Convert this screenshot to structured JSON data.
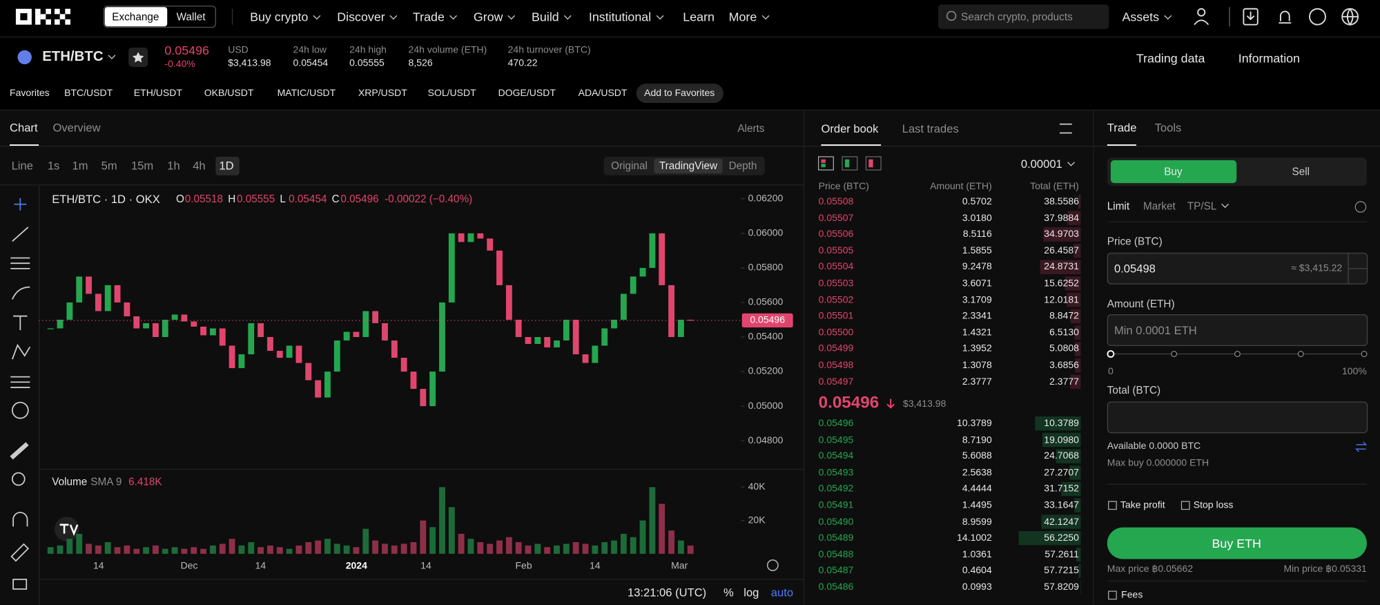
{
  "nav": {
    "exchange": "Exchange",
    "wallet": "Wallet",
    "menu": [
      "Buy crypto",
      "Discover",
      "Trade",
      "Grow",
      "Build",
      "Institutional",
      "Learn",
      "More"
    ],
    "search": "Search crypto, products",
    "assets": "Assets"
  },
  "ticker": {
    "pair": "ETH/BTC",
    "price": "0.05496",
    "change": "-0.40%",
    "stats": [
      {
        "label": "USD",
        "value": "$3,413.98"
      },
      {
        "label": "24h low",
        "value": "0.05454"
      },
      {
        "label": "24h high",
        "value": "0.05555"
      },
      {
        "label": "24h volume (ETH)",
        "value": "8,526"
      },
      {
        "label": "24h turnover (BTC)",
        "value": "470.22"
      }
    ],
    "trading_data": "Trading data",
    "information": "Information"
  },
  "favorites": {
    "label": "Favorites",
    "pairs": [
      "BTC/USDT",
      "ETH/USDT",
      "OKB/USDT",
      "MATIC/USDT",
      "XRP/USDT",
      "SOL/USDT",
      "DOGE/USDT",
      "ADA/USDT"
    ],
    "add": "Add to Favorites"
  },
  "chart_panel": {
    "tabs": [
      "Chart",
      "Overview"
    ],
    "alerts": "Alerts",
    "intervals": [
      "Line",
      "1s",
      "1m",
      "5m",
      "15m",
      "1h",
      "4h",
      "1D"
    ],
    "views": [
      "Original",
      "TradingView",
      "Depth"
    ],
    "legend": {
      "title": "ETH/BTC · 1D · OKX",
      "ohlc": [
        {
          "key": "O",
          "value": "0.05518"
        },
        {
          "key": "H",
          "value": "0.05555"
        },
        {
          "key": "L",
          "value": "0.05454"
        },
        {
          "key": "C",
          "value": "0.05496"
        }
      ],
      "change": "-0.00022 (−0.40%)"
    },
    "volume_label": "Volume",
    "sma": "SMA 9",
    "sma_value": "6.418K",
    "time": "13:21:06 (UTC)",
    "percent": "%",
    "log": "log",
    "auto": "auto"
  },
  "chart": {
    "type": "candlestick",
    "close": [
      0.0545,
      0.055,
      0.056,
      0.0575,
      0.0565,
      0.0555,
      0.057,
      0.056,
      0.0552,
      0.0545,
      0.0548,
      0.054,
      0.055,
      0.0553,
      0.0549,
      0.0546,
      0.0541,
      0.0545,
      0.0535,
      0.0522,
      0.053,
      0.0548,
      0.054,
      0.0532,
      0.0528,
      0.0535,
      0.0525,
      0.0515,
      0.0505,
      0.052,
      0.0538,
      0.0543,
      0.054,
      0.0555,
      0.0548,
      0.0538,
      0.0528,
      0.052,
      0.051,
      0.05,
      0.052,
      0.056,
      0.06,
      0.0595,
      0.06,
      0.0597,
      0.059,
      0.057,
      0.055,
      0.054,
      0.0536,
      0.054,
      0.0534,
      0.0538,
      0.055,
      0.053,
      0.0525,
      0.0535,
      0.0545,
      0.055,
      0.0565,
      0.0575,
      0.058,
      0.06,
      0.057,
      0.054,
      0.055,
      0.05496
    ],
    "volume": [
      4000,
      5000,
      9000,
      12000,
      6000,
      5000,
      7000,
      4000,
      5000,
      3000,
      4000,
      5000,
      3000,
      4000,
      3000,
      4000,
      3000,
      5000,
      6000,
      9000,
      5000,
      7000,
      4000,
      5000,
      4000,
      3000,
      5000,
      7000,
      8000,
      9000,
      6000,
      5000,
      4000,
      15000,
      8000,
      6000,
      5000,
      6000,
      7000,
      20000,
      16000,
      40000,
      28000,
      12000,
      9000,
      7000,
      6000,
      8000,
      10000,
      7000,
      5000,
      6000,
      4000,
      5000,
      6000,
      7000,
      6000,
      5000,
      7000,
      8000,
      12000,
      10000,
      20000,
      40000,
      30000,
      14000,
      8000,
      5000
    ],
    "ylim": [
      0.0465,
      0.0627
    ],
    "yticks": [
      {
        "value": 0.062,
        "label": "0.06200"
      },
      {
        "value": 0.06,
        "label": "0.06000"
      },
      {
        "value": 0.058,
        "label": "0.05800"
      },
      {
        "value": 0.056,
        "label": "0.05600"
      },
      {
        "value": 0.054,
        "label": "0.05400"
      },
      {
        "value": 0.052,
        "label": "0.05200"
      },
      {
        "value": 0.05,
        "label": "0.05000"
      },
      {
        "value": 0.048,
        "label": "0.04800"
      }
    ],
    "vlim": [
      0,
      47000
    ],
    "vticks": [
      {
        "value": 40000,
        "label": "40K"
      },
      {
        "value": 20000,
        "label": "20K"
      }
    ],
    "xlabels": [
      "14",
      "Dec",
      "14",
      "2024",
      "14",
      "Feb",
      "14",
      "Mar"
    ]
  },
  "order_book": {
    "tabs": [
      "Order book",
      "Last trades"
    ],
    "step": "0.00001",
    "headers": [
      "Price (BTC)",
      "Amount (ETH)",
      "Total (ETH)"
    ],
    "asks": [
      [
        "0.05508",
        "0.5702",
        "38.5586"
      ],
      [
        "0.05507",
        "3.0180",
        "37.9884"
      ],
      [
        "0.05506",
        "8.5116",
        "34.9703"
      ],
      [
        "0.05505",
        "1.5855",
        "26.4587"
      ],
      [
        "0.05504",
        "9.2478",
        "24.8731"
      ],
      [
        "0.05503",
        "3.6071",
        "15.6252"
      ],
      [
        "0.05502",
        "3.1709",
        "12.0181"
      ],
      [
        "0.05501",
        "2.3341",
        "8.8472"
      ],
      [
        "0.05500",
        "1.4321",
        "6.5130"
      ],
      [
        "0.05499",
        "1.3952",
        "5.0808"
      ],
      [
        "0.05498",
        "1.3078",
        "3.6856"
      ],
      [
        "0.05497",
        "2.3777",
        "2.3777"
      ]
    ],
    "mid": {
      "price": "0.05496",
      "usd": "$3,413.98"
    },
    "bids": [
      [
        "0.05496",
        "10.3789",
        "10.3789"
      ],
      [
        "0.05495",
        "8.7190",
        "19.0980"
      ],
      [
        "0.05494",
        "5.6088",
        "24.7068"
      ],
      [
        "0.05493",
        "2.5638",
        "27.2707"
      ],
      [
        "0.05492",
        "4.4444",
        "31.7152"
      ],
      [
        "0.05491",
        "1.4495",
        "33.1647"
      ],
      [
        "0.05490",
        "8.9599",
        "42.1247"
      ],
      [
        "0.05489",
        "14.1002",
        "56.2250"
      ],
      [
        "0.05488",
        "1.0361",
        "57.2611"
      ],
      [
        "0.05487",
        "0.4604",
        "57.7215"
      ],
      [
        "0.05486",
        "0.0993",
        "57.8209"
      ]
    ]
  },
  "trade": {
    "tabs": [
      "Trade",
      "Tools"
    ],
    "sides": [
      "Buy",
      "Sell"
    ],
    "order_types": [
      "Limit",
      "Market",
      "TP/SL"
    ],
    "price_label": "Price (BTC)",
    "price": "0.05498",
    "price_usd": "≈ $3,415.22",
    "amount_label": "Amount (ETH)",
    "amount_placeholder": "Min 0.0001 ETH",
    "slider_min": "0",
    "slider_max": "100%",
    "total_label": "Total (BTC)",
    "available": "Available 0.0000 BTC",
    "max_buy": "Max buy 0.000000 ETH",
    "take_profit": "Take profit",
    "stop_loss": "Stop loss",
    "submit": "Buy ETH",
    "max_price": "Max price ฿0.05662",
    "min_price": "Min price ฿0.05331",
    "fees": "Fees"
  }
}
